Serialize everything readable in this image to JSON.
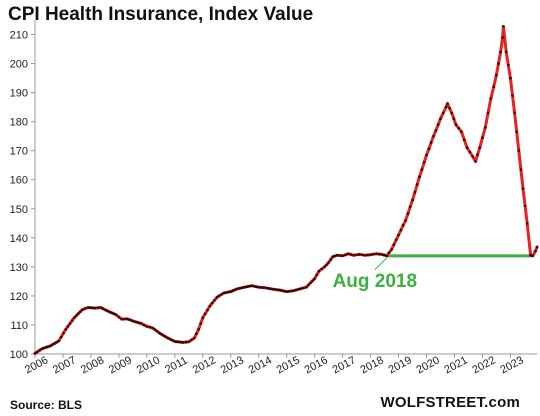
{
  "chart_title": "CPI Health Insurance, Index Value",
  "source": "Source: BLS",
  "brand": "WOLFSTREET.com",
  "colors": {
    "line": "#e8231f",
    "markers": "#2a0a0a",
    "reference": "#3cb043",
    "annotation": "#3cb043",
    "axis": "#999999"
  },
  "chart_data": {
    "type": "line",
    "title": "CPI Health Insurance, Index Value",
    "xlabel": "",
    "ylabel": "",
    "ylim": [
      100,
      215
    ],
    "xlim": [
      2006.0,
      2023.95
    ],
    "y_ticks": [
      100,
      110,
      120,
      130,
      140,
      150,
      160,
      170,
      180,
      190,
      200,
      210
    ],
    "x_tick_labels": [
      "2006",
      "2007",
      "2008",
      "2009",
      "2010",
      "2011",
      "2012",
      "2013",
      "2014",
      "2015",
      "2016",
      "2017",
      "2018",
      "2019",
      "2020",
      "2021",
      "2022",
      "2023"
    ],
    "grid": false,
    "legend": "none",
    "series": [
      {
        "anchor_points": [
          [
            2006.0,
            100.2
          ],
          [
            2006.25,
            101.8
          ],
          [
            2006.55,
            102.8
          ],
          [
            2006.85,
            104.5
          ],
          [
            2007.1,
            108.5
          ],
          [
            2007.4,
            112.5
          ],
          [
            2007.7,
            115.3
          ],
          [
            2007.9,
            116.0
          ],
          [
            2008.15,
            115.8
          ],
          [
            2008.35,
            116.0
          ],
          [
            2008.6,
            114.8
          ],
          [
            2008.9,
            113.5
          ],
          [
            2009.1,
            112.0
          ],
          [
            2009.3,
            112.1
          ],
          [
            2009.55,
            111.2
          ],
          [
            2009.8,
            110.5
          ],
          [
            2010.0,
            109.5
          ],
          [
            2010.2,
            109.0
          ],
          [
            2010.45,
            107.2
          ],
          [
            2010.75,
            105.5
          ],
          [
            2011.0,
            104.3
          ],
          [
            2011.3,
            104.0
          ],
          [
            2011.5,
            104.2
          ],
          [
            2011.7,
            105.5
          ],
          [
            2011.85,
            108.5
          ],
          [
            2012.0,
            112.5
          ],
          [
            2012.25,
            116.5
          ],
          [
            2012.5,
            119.5
          ],
          [
            2012.75,
            121.0
          ],
          [
            2013.0,
            121.5
          ],
          [
            2013.25,
            122.5
          ],
          [
            2013.5,
            123.0
          ],
          [
            2013.75,
            123.5
          ],
          [
            2014.0,
            123.0
          ],
          [
            2014.25,
            122.8
          ],
          [
            2014.5,
            122.3
          ],
          [
            2014.75,
            122.0
          ],
          [
            2015.0,
            121.5
          ],
          [
            2015.25,
            121.8
          ],
          [
            2015.5,
            122.5
          ],
          [
            2015.7,
            123.0
          ],
          [
            2015.85,
            124.5
          ],
          [
            2016.0,
            126.0
          ],
          [
            2016.15,
            128.5
          ],
          [
            2016.35,
            130.0
          ],
          [
            2016.5,
            131.5
          ],
          [
            2016.65,
            133.5
          ],
          [
            2016.8,
            134.0
          ],
          [
            2017.0,
            133.8
          ],
          [
            2017.2,
            134.5
          ],
          [
            2017.4,
            134.0
          ],
          [
            2017.6,
            134.3
          ],
          [
            2017.8,
            134.0
          ],
          [
            2018.0,
            134.2
          ],
          [
            2018.2,
            134.5
          ],
          [
            2018.4,
            134.3
          ],
          [
            2018.58,
            133.8
          ],
          [
            2018.75,
            136.0
          ],
          [
            2019.0,
            141.0
          ],
          [
            2019.25,
            146.0
          ],
          [
            2019.5,
            153.0
          ],
          [
            2019.75,
            161.0
          ],
          [
            2020.0,
            168.5
          ],
          [
            2020.25,
            175.0
          ],
          [
            2020.5,
            181.0
          ],
          [
            2020.7,
            185.0
          ],
          [
            2020.75,
            186.2
          ],
          [
            2020.9,
            183.0
          ],
          [
            2021.05,
            179.0
          ],
          [
            2021.25,
            176.5
          ],
          [
            2021.45,
            171.0
          ],
          [
            2021.65,
            168.0
          ],
          [
            2021.75,
            166.3
          ],
          [
            2021.9,
            171.0
          ],
          [
            2022.1,
            178.0
          ],
          [
            2022.3,
            188.0
          ],
          [
            2022.5,
            196.0
          ],
          [
            2022.65,
            204.0
          ],
          [
            2022.72,
            209.0
          ],
          [
            2022.75,
            212.8
          ],
          [
            2022.85,
            204.0
          ],
          [
            2023.0,
            195.0
          ],
          [
            2023.15,
            183.0
          ],
          [
            2023.3,
            170.0
          ],
          [
            2023.45,
            157.0
          ],
          [
            2023.6,
            145.0
          ],
          [
            2023.72,
            134.0
          ],
          [
            2023.8,
            133.8
          ],
          [
            2023.9,
            135.5
          ],
          [
            2023.95,
            136.8
          ]
        ]
      }
    ],
    "reference_line": {
      "y": 133.8,
      "x_start": 2018.58,
      "x_end": 2023.75
    },
    "annotations": [
      {
        "text": "Aug 2018",
        "x": 2018.58,
        "y": 133.8
      }
    ]
  }
}
